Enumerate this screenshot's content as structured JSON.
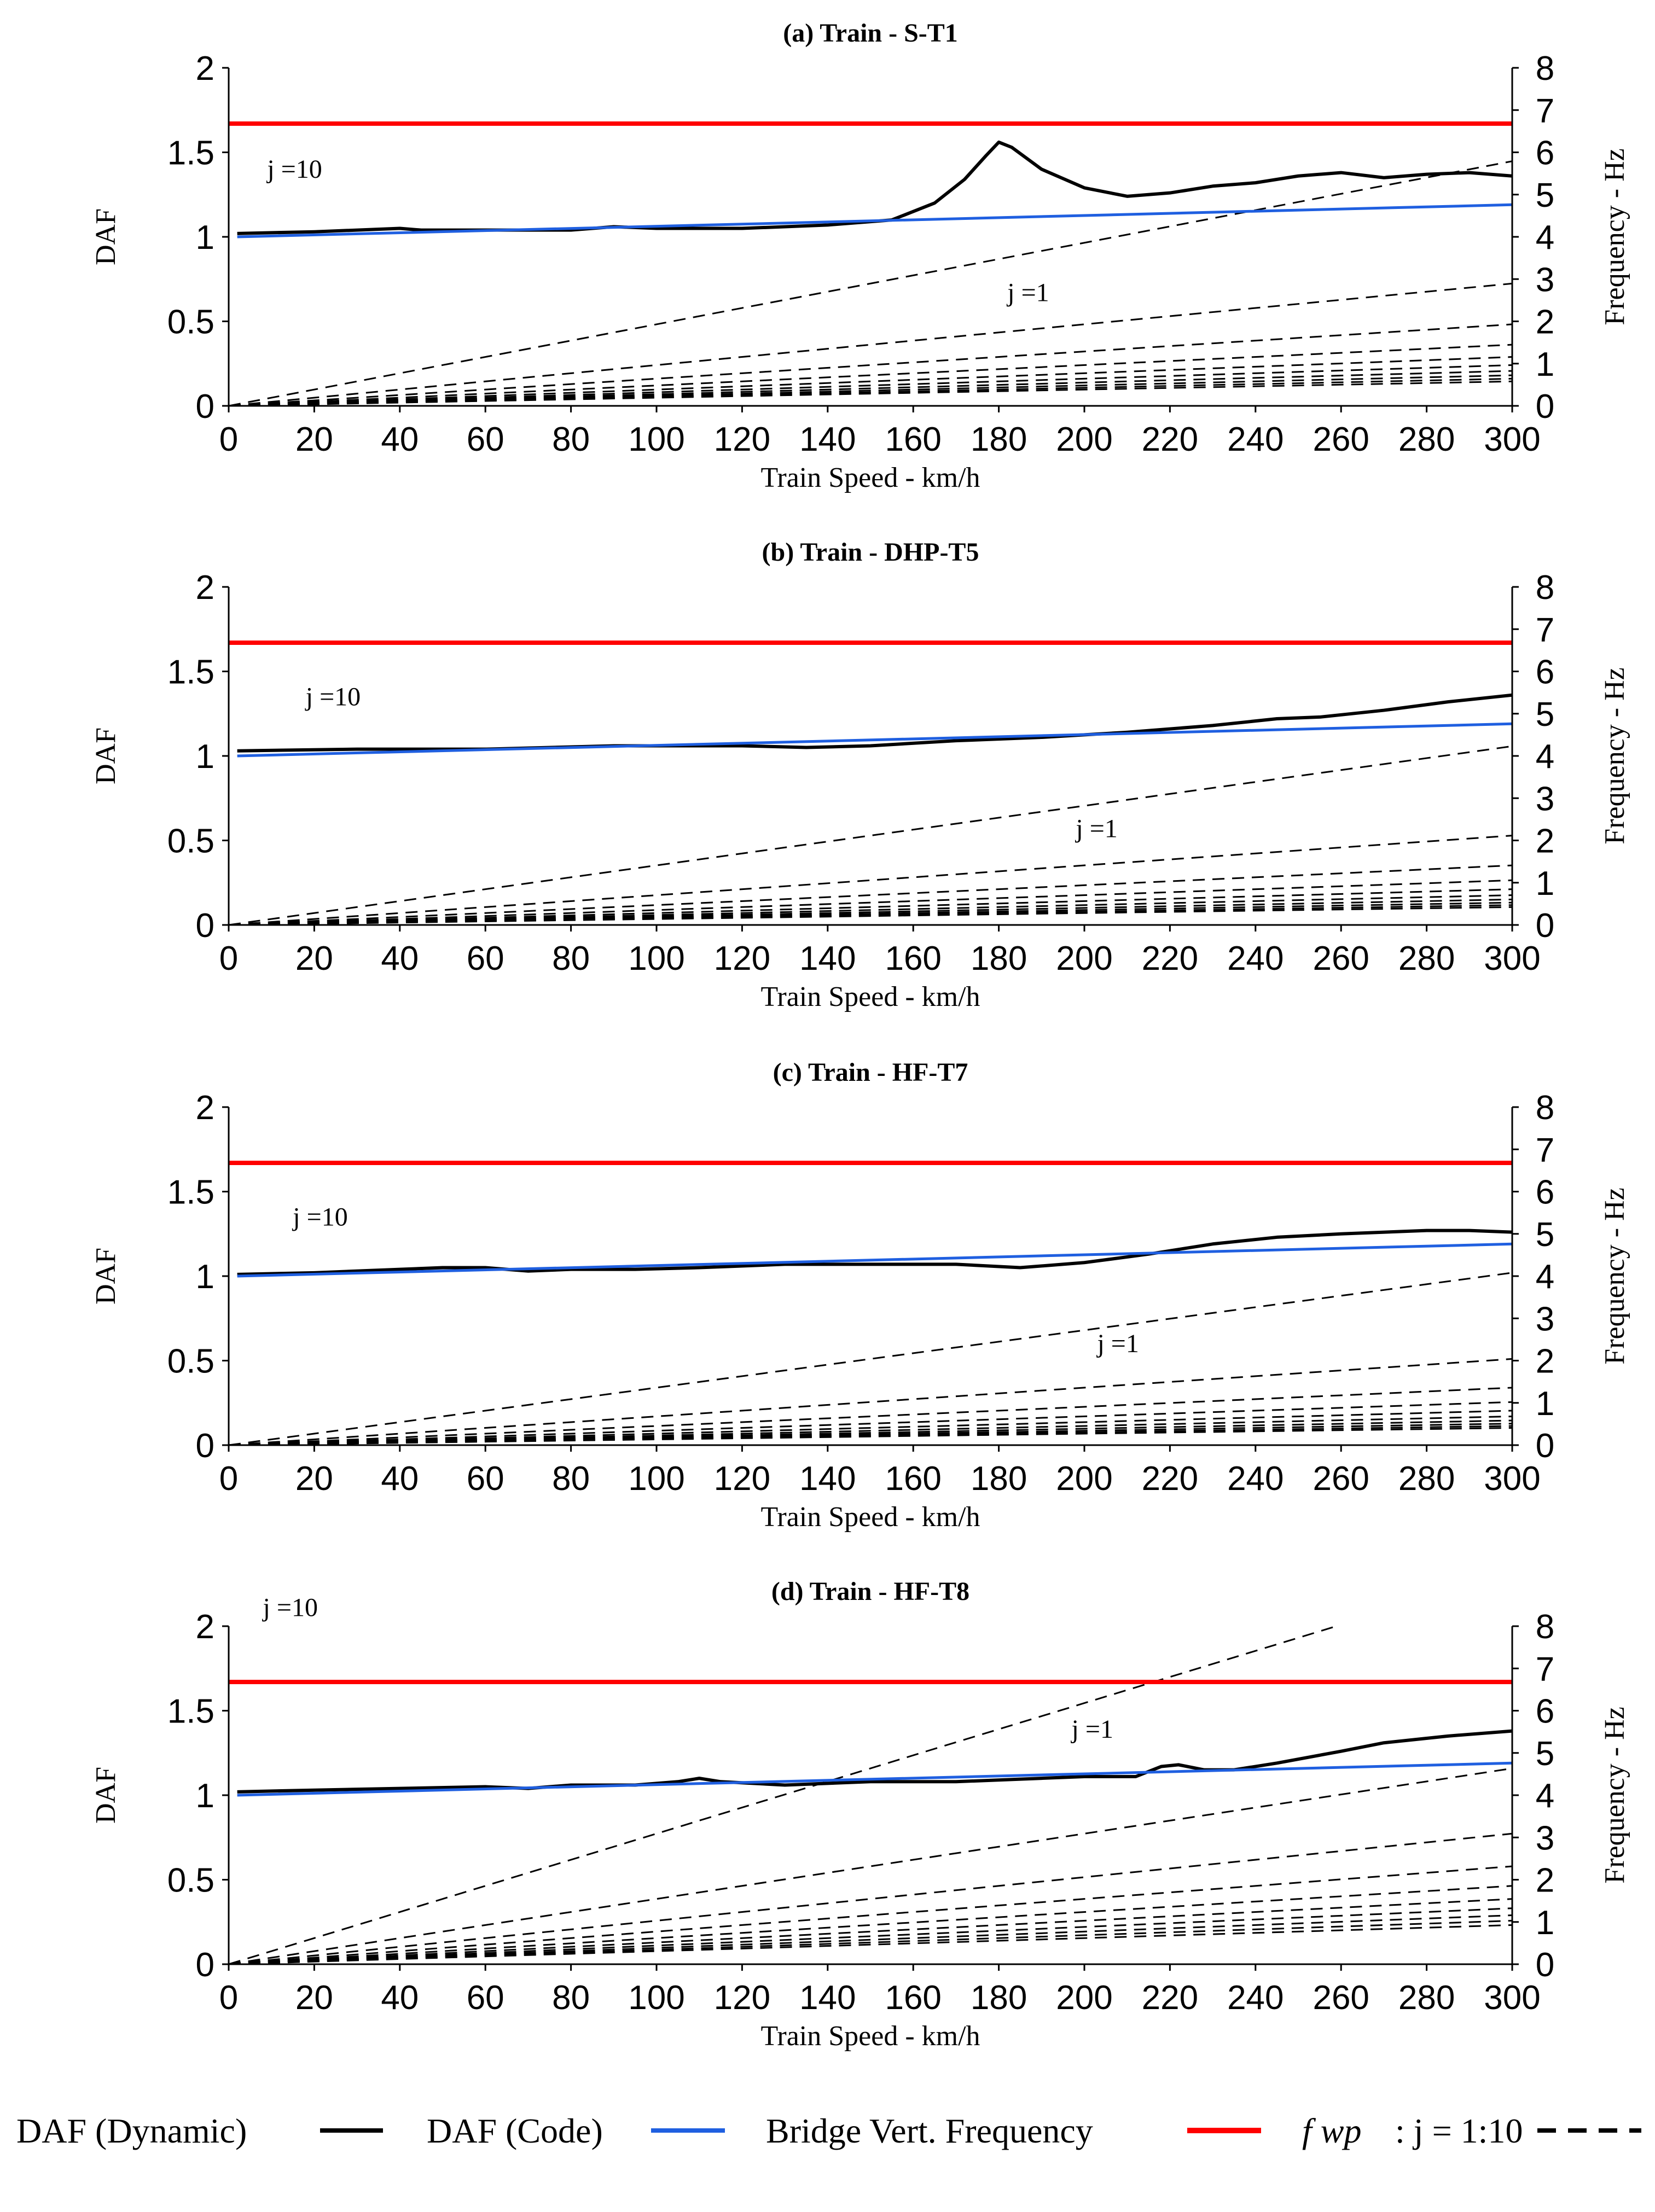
{
  "chart_data": [
    {
      "type": "line",
      "title": "(a) Train - S-T1",
      "xlabel": "Train Speed - km/h",
      "ylabel": "DAF",
      "y2label": "Frequency - Hz",
      "xlim": [
        0,
        300
      ],
      "ylim": [
        0,
        2
      ],
      "y2lim": [
        0,
        8
      ],
      "xticks": [
        0,
        20,
        40,
        60,
        80,
        100,
        120,
        140,
        160,
        180,
        200,
        220,
        240,
        260,
        280,
        300
      ],
      "yticks": [
        0,
        0.5,
        1,
        1.5,
        2
      ],
      "y2ticks": [
        0,
        1,
        2,
        3,
        4,
        5,
        6,
        7,
        8
      ],
      "bridge_frequency_hz": 6.68,
      "fwp_slope_hz_per_kmh": 0.0193,
      "annotations": [
        {
          "text": "j =10",
          "x": 9,
          "y": 1.35
        },
        {
          "text": "j =1",
          "x": 182,
          "y": 0.62
        }
      ],
      "series": [
        {
          "name": "DAF (Dynamic)",
          "x": [
            2,
            20,
            40,
            45,
            60,
            80,
            90,
            100,
            120,
            140,
            155,
            165,
            172,
            177,
            180,
            183,
            190,
            200,
            210,
            220,
            230,
            240,
            250,
            260,
            270,
            280,
            290,
            300
          ],
          "y": [
            1.02,
            1.03,
            1.05,
            1.04,
            1.04,
            1.04,
            1.06,
            1.05,
            1.05,
            1.07,
            1.1,
            1.2,
            1.34,
            1.48,
            1.56,
            1.53,
            1.4,
            1.29,
            1.24,
            1.26,
            1.3,
            1.32,
            1.36,
            1.38,
            1.35,
            1.37,
            1.38,
            1.36
          ]
        },
        {
          "name": "DAF (Code)",
          "x": [
            2,
            300
          ],
          "y": [
            1.0,
            1.19
          ]
        }
      ]
    },
    {
      "type": "line",
      "title": "(b) Train - DHP-T5",
      "xlabel": "Train Speed - km/h",
      "ylabel": "DAF",
      "y2label": "Frequency - Hz",
      "xlim": [
        0,
        300
      ],
      "ylim": [
        0,
        2
      ],
      "y2lim": [
        0,
        8
      ],
      "xticks": [
        0,
        20,
        40,
        60,
        80,
        100,
        120,
        140,
        160,
        180,
        200,
        220,
        240,
        260,
        280,
        300
      ],
      "yticks": [
        0,
        0.5,
        1,
        1.5,
        2
      ],
      "y2ticks": [
        0,
        1,
        2,
        3,
        4,
        5,
        6,
        7,
        8
      ],
      "bridge_frequency_hz": 6.68,
      "fwp_slope_hz_per_kmh": 0.0141,
      "annotations": [
        {
          "text": "j =10",
          "x": 18,
          "y": 1.3
        },
        {
          "text": "j =1",
          "x": 198,
          "y": 0.52
        }
      ],
      "series": [
        {
          "name": "DAF (Dynamic)",
          "x": [
            2,
            30,
            60,
            90,
            110,
            120,
            135,
            150,
            170,
            190,
            210,
            230,
            245,
            255,
            270,
            285,
            300
          ],
          "y": [
            1.03,
            1.04,
            1.04,
            1.06,
            1.06,
            1.06,
            1.05,
            1.06,
            1.09,
            1.11,
            1.14,
            1.18,
            1.22,
            1.23,
            1.27,
            1.32,
            1.36
          ]
        },
        {
          "name": "DAF (Code)",
          "x": [
            2,
            300
          ],
          "y": [
            1.0,
            1.19
          ]
        }
      ]
    },
    {
      "type": "line",
      "title": "(c) Train - HF-T7",
      "xlabel": "Train Speed - km/h",
      "ylabel": "DAF",
      "y2label": "Frequency - Hz",
      "xlim": [
        0,
        300
      ],
      "ylim": [
        0,
        2
      ],
      "y2lim": [
        0,
        8
      ],
      "xticks": [
        0,
        20,
        40,
        60,
        80,
        100,
        120,
        140,
        160,
        180,
        200,
        220,
        240,
        260,
        280,
        300
      ],
      "yticks": [
        0,
        0.5,
        1,
        1.5,
        2
      ],
      "y2ticks": [
        0,
        1,
        2,
        3,
        4,
        5,
        6,
        7,
        8
      ],
      "bridge_frequency_hz": 6.68,
      "fwp_slope_hz_per_kmh": 0.0136,
      "annotations": [
        {
          "text": "j =10",
          "x": 15,
          "y": 1.3
        },
        {
          "text": "j =1",
          "x": 203,
          "y": 0.55
        }
      ],
      "series": [
        {
          "name": "DAF (Dynamic)",
          "x": [
            2,
            20,
            40,
            50,
            60,
            70,
            80,
            95,
            110,
            130,
            150,
            170,
            185,
            200,
            215,
            230,
            245,
            260,
            280,
            290,
            300
          ],
          "y": [
            1.01,
            1.02,
            1.04,
            1.05,
            1.05,
            1.03,
            1.04,
            1.04,
            1.05,
            1.07,
            1.07,
            1.07,
            1.05,
            1.08,
            1.13,
            1.19,
            1.23,
            1.25,
            1.27,
            1.27,
            1.26
          ]
        },
        {
          "name": "DAF (Code)",
          "x": [
            2,
            300
          ],
          "y": [
            1.0,
            1.19
          ]
        }
      ]
    },
    {
      "type": "line",
      "title": "(d) Train - HF-T8",
      "xlabel": "Train Speed - km/h",
      "ylabel": "DAF",
      "y2label": "Frequency - Hz",
      "xlim": [
        0,
        300
      ],
      "ylim": [
        0,
        2
      ],
      "y2lim": [
        0,
        8
      ],
      "xticks": [
        0,
        20,
        40,
        60,
        80,
        100,
        120,
        140,
        160,
        180,
        200,
        220,
        240,
        260,
        280,
        300
      ],
      "yticks": [
        0,
        0.5,
        1,
        1.5,
        2
      ],
      "y2ticks": [
        0,
        1,
        2,
        3,
        4,
        5,
        6,
        7,
        8
      ],
      "bridge_frequency_hz": 6.68,
      "fwp_slope_hz_per_kmh": 0.0309,
      "annotations": [
        {
          "text": "j =10",
          "x": 8,
          "y": 2.06
        },
        {
          "text": "j =1",
          "x": 197,
          "y": 1.34
        }
      ],
      "series": [
        {
          "name": "DAF (Dynamic)",
          "x": [
            2,
            20,
            40,
            60,
            70,
            80,
            95,
            105,
            110,
            115,
            130,
            150,
            170,
            190,
            200,
            212,
            218,
            222,
            228,
            235,
            245,
            260,
            270,
            285,
            300
          ],
          "y": [
            1.02,
            1.03,
            1.04,
            1.05,
            1.04,
            1.06,
            1.06,
            1.08,
            1.1,
            1.08,
            1.06,
            1.08,
            1.08,
            1.1,
            1.11,
            1.11,
            1.17,
            1.18,
            1.15,
            1.15,
            1.19,
            1.26,
            1.31,
            1.35,
            1.38
          ]
        },
        {
          "name": "DAF (Code)",
          "x": [
            2,
            300
          ],
          "y": [
            1.0,
            1.19
          ]
        }
      ]
    }
  ],
  "legend": {
    "items": [
      {
        "label": "DAF (Dynamic)",
        "color": "#000000",
        "style": "solid"
      },
      {
        "label": "DAF (Code)",
        "color": "#1f5fe0",
        "style": "solid"
      },
      {
        "label": "Bridge Vert. Frequency",
        "color": "#ff0000",
        "style": "solid"
      },
      {
        "label": ": j = 1:10",
        "prefix": "f wp",
        "color": "#000000",
        "style": "dashed"
      }
    ]
  },
  "colors": {
    "dynamic": "#000000",
    "code": "#1f5fe0",
    "bridge": "#ff0000",
    "fwp": "#000000"
  }
}
